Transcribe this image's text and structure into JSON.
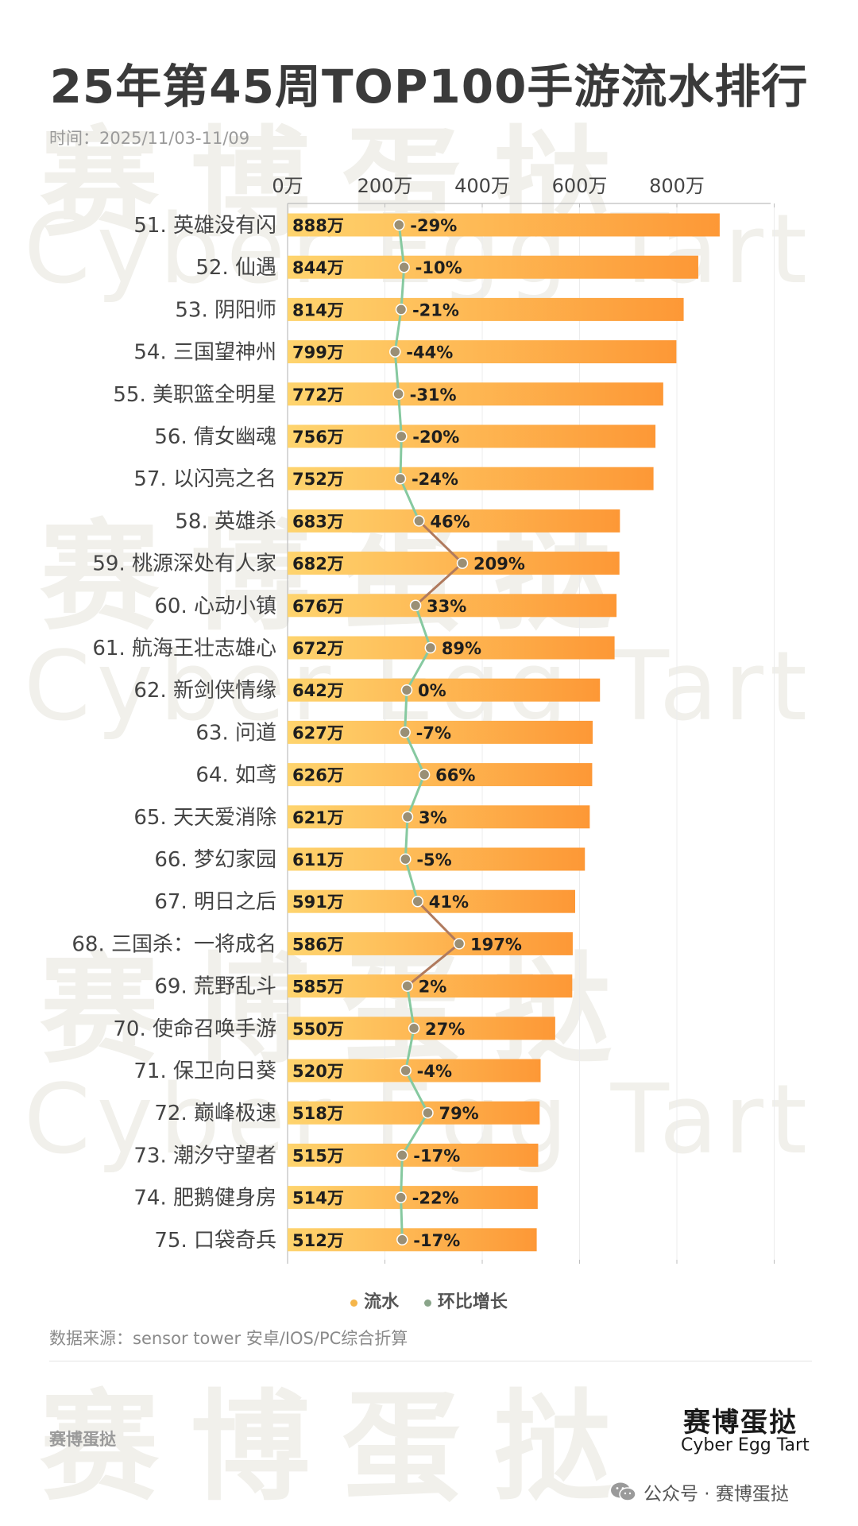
{
  "title": "25年第45周TOP100手游流水排行",
  "period": "时间：2025/11/03-11/09",
  "source": "数据来源：sensor tower 安卓/IOS/PC综合折算",
  "brand": {
    "small": "赛博蛋挞",
    "logo_cn": "赛博蛋挞",
    "logo_en": "Cyber Egg Tart",
    "wechat": "公众号 · 赛博蛋挞"
  },
  "watermark": {
    "cn": "赛博蛋挞",
    "en": "Cyber Egg Tart"
  },
  "legend": {
    "revenue": "流水",
    "growth": "环比增长"
  },
  "colors": {
    "bar_start": "#fed46e",
    "bar_end": "#fd9836",
    "line_up": "#b07a5e",
    "line_down": "#86c9a0",
    "dot": "#9a8f75",
    "legend_revenue": "#f5b54a",
    "legend_growth": "#8aa58a"
  },
  "chart_data": {
    "type": "bar",
    "orientation": "horizontal",
    "x_axis": {
      "ticks": [
        "0万",
        "200万",
        "400万",
        "600万",
        "800万"
      ],
      "tick_values": [
        0,
        200,
        400,
        600,
        800
      ],
      "range": [
        0,
        800
      ],
      "position": "top"
    },
    "grid": true,
    "legend_position": "bottom-center",
    "categories": [
      "51. 英雄没有闪",
      "52. 仙遇",
      "53. 阴阳师",
      "54. 三国望神州",
      "55. 美职篮全明星",
      "56. 倩女幽魂",
      "57. 以闪亮之名",
      "58. 英雄杀",
      "59. 桃源深处有人家",
      "60. 心动小镇",
      "61. 航海王壮志雄心",
      "62. 新剑侠情缘",
      "63. 问道",
      "64. 如鸢",
      "65. 天天爱消除",
      "66. 梦幻家园",
      "67. 明日之后",
      "68. 三国杀：一将成名",
      "69. 荒野乱斗",
      "70. 使命召唤手游",
      "71. 保卫向日葵",
      "72. 巅峰极速",
      "73. 潮汐守望者",
      "74. 肥鹅健身房",
      "75. 口袋奇兵"
    ],
    "series": [
      {
        "name": "流水",
        "type": "bar",
        "values": [
          888,
          844,
          814,
          799,
          772,
          756,
          752,
          683,
          682,
          676,
          672,
          642,
          627,
          626,
          621,
          611,
          591,
          586,
          585,
          550,
          520,
          518,
          515,
          514,
          512
        ],
        "labels": [
          "888万",
          "844万",
          "814万",
          "799万",
          "772万",
          "756万",
          "752万",
          "683万",
          "682万",
          "676万",
          "672万",
          "642万",
          "627万",
          "626万",
          "621万",
          "611万",
          "591万",
          "586万",
          "585万",
          "550万",
          "520万",
          "518万",
          "515万",
          "514万",
          "512万"
        ]
      },
      {
        "name": "环比增长",
        "type": "line",
        "values": [
          -29,
          -10,
          -21,
          -44,
          -31,
          -20,
          -24,
          46,
          209,
          33,
          89,
          0,
          -7,
          66,
          3,
          -5,
          41,
          197,
          2,
          27,
          -4,
          79,
          -17,
          -22,
          -17
        ],
        "labels": [
          "-29%",
          "-10%",
          "-21%",
          "-44%",
          "-31%",
          "-20%",
          "-24%",
          "46%",
          "209%",
          "33%",
          "89%",
          "0%",
          "-7%",
          "66%",
          "3%",
          "-5%",
          "41%",
          "197%",
          "2%",
          "27%",
          "-4%",
          "79%",
          "-17%",
          "-22%",
          "-17%"
        ]
      }
    ]
  }
}
